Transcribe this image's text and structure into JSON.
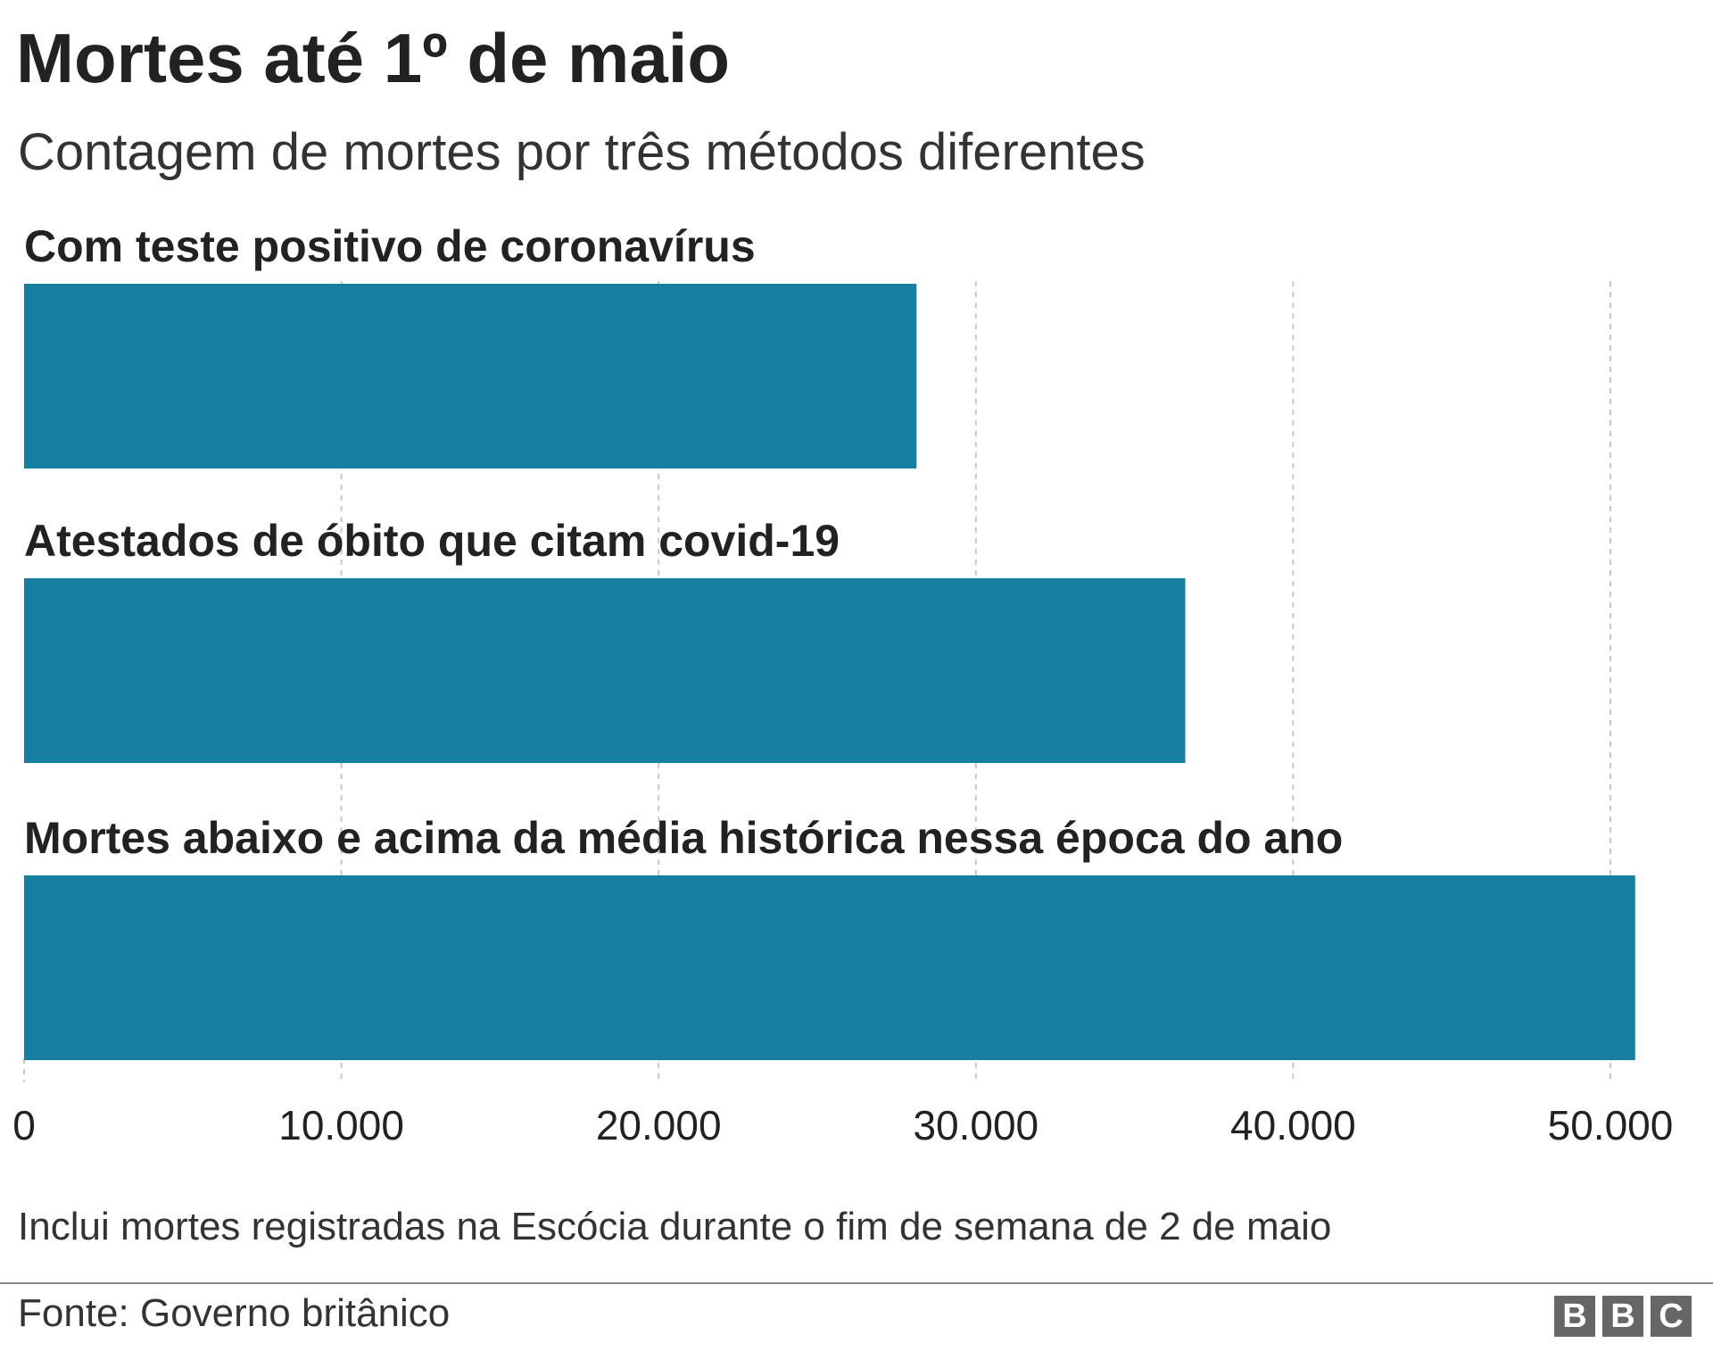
{
  "header": {
    "title": "Mortes até 1º de maio",
    "subtitle": "Contagem de mortes por três métodos diferentes"
  },
  "chart_data": {
    "type": "bar",
    "orientation": "horizontal",
    "categories": [
      "Com teste positivo de coronavírus",
      "Atestados de óbito que citam covid-19",
      "Mortes abaixo e acima da média histórica nessa época do ano"
    ],
    "values": [
      28130,
      36600,
      50780
    ],
    "xlim": [
      0,
      50000
    ],
    "ticks": [
      0,
      10000,
      20000,
      30000,
      40000,
      50000
    ],
    "tick_labels": [
      "0",
      "10.000",
      "20.000",
      "30.000",
      "40.000",
      "50.000"
    ],
    "grid": true,
    "bar_color": "#167f9f"
  },
  "footer": {
    "note": "Inclui mortes registradas na Escócia durante o fim de semana de 2 de maio",
    "source": "Fonte: Governo britânico",
    "logo_letters": [
      "B",
      "B",
      "C"
    ]
  }
}
